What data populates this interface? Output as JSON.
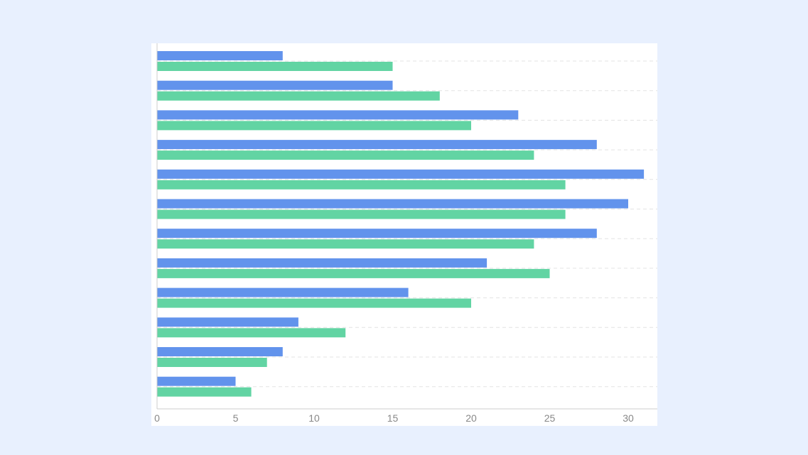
{
  "colors": {
    "page_background": "#e8f0fe",
    "card_background": "#ffffff",
    "series_1": "#6293ec",
    "series_2": "#62d4a3",
    "grid": "#e3e3e3",
    "axis": "#cccccc",
    "tick_text": "#888888"
  },
  "chart_data": {
    "type": "bar",
    "orientation": "horizontal",
    "title": "",
    "xlabel": "",
    "ylabel": "",
    "xlim": [
      0,
      32
    ],
    "x_ticks": [
      0,
      5,
      10,
      15,
      20,
      25,
      30
    ],
    "x_tick_labels": [
      "0",
      "5",
      "10",
      "15",
      "20",
      "25",
      "30"
    ],
    "grid": "horizontal dashed",
    "legend": "none",
    "categories": [
      "",
      "",
      "",
      "",
      "",
      "",
      "",
      "",
      "",
      "",
      "",
      ""
    ],
    "series": [
      {
        "color": "#6293ec",
        "values": [
          8,
          15,
          23,
          28,
          31,
          30,
          28,
          21,
          16,
          9,
          8,
          5
        ]
      },
      {
        "color": "#62d4a3",
        "values": [
          15,
          18,
          20,
          24,
          26,
          26,
          24,
          25,
          20,
          12,
          7,
          6
        ]
      }
    ]
  }
}
